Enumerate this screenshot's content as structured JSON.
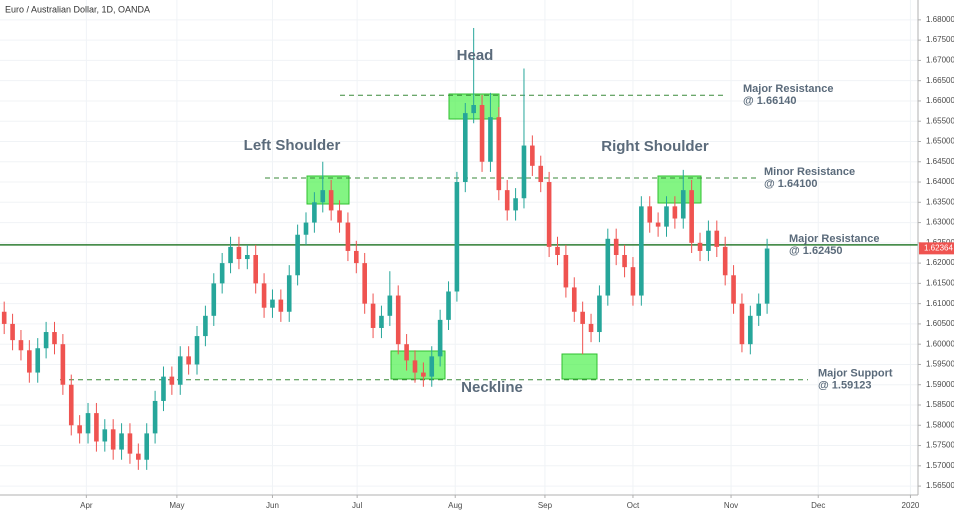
{
  "chart_data": {
    "type": "candlestick",
    "title": "Euro / Australian Dollar, 1D, OANDA",
    "up_color": "#26a69a",
    "down_color": "#ef5350",
    "grid": true,
    "ylim": [
      1.5628,
      1.6849
    ],
    "yticks": [
      {
        "value": 1.565,
        "label": "1.56500"
      },
      {
        "value": 1.57,
        "label": "1.57000"
      },
      {
        "value": 1.575,
        "label": "1.57500"
      },
      {
        "value": 1.58,
        "label": "1.58000"
      },
      {
        "value": 1.585,
        "label": "1.58500"
      },
      {
        "value": 1.59,
        "label": "1.59000"
      },
      {
        "value": 1.595,
        "label": "1.59500"
      },
      {
        "value": 1.6,
        "label": "1.60000"
      },
      {
        "value": 1.605,
        "label": "1.60500"
      },
      {
        "value": 1.61,
        "label": "1.61000"
      },
      {
        "value": 1.615,
        "label": "1.61500"
      },
      {
        "value": 1.62,
        "label": "1.62000"
      },
      {
        "value": 1.625,
        "label": "1.62500"
      },
      {
        "value": 1.63,
        "label": "1.63000"
      },
      {
        "value": 1.635,
        "label": "1.63500"
      },
      {
        "value": 1.64,
        "label": "1.64000"
      },
      {
        "value": 1.645,
        "label": "1.64500"
      },
      {
        "value": 1.65,
        "label": "1.65000"
      },
      {
        "value": 1.655,
        "label": "1.65500"
      },
      {
        "value": 1.66,
        "label": "1.66000"
      },
      {
        "value": 1.665,
        "label": "1.66500"
      },
      {
        "value": 1.67,
        "label": "1.67000"
      },
      {
        "value": 1.675,
        "label": "1.67500"
      },
      {
        "value": 1.68,
        "label": "1.68000"
      }
    ],
    "xlim": [
      -0.5,
      109
    ],
    "xticks": [
      {
        "value": 9.8,
        "label": "Apr"
      },
      {
        "value": 20.6,
        "label": "May"
      },
      {
        "value": 32,
        "label": "Jun"
      },
      {
        "value": 42.1,
        "label": "Jul"
      },
      {
        "value": 53.8,
        "label": "Aug"
      },
      {
        "value": 64.5,
        "label": "Sep"
      },
      {
        "value": 75,
        "label": "Oct"
      },
      {
        "value": 86.7,
        "label": "Nov"
      },
      {
        "value": 97.1,
        "label": "Dec"
      },
      {
        "value": 108.1,
        "label": "2020"
      }
    ],
    "candles": [
      [
        1.608,
        1.6105,
        1.6025,
        1.605
      ],
      [
        1.605,
        1.6075,
        1.5985,
        1.601
      ],
      [
        1.601,
        1.6035,
        1.596,
        1.5985
      ],
      [
        1.5985,
        1.601,
        1.5905,
        1.593
      ],
      [
        1.593,
        1.6015,
        1.5905,
        1.599
      ],
      [
        1.599,
        1.6055,
        1.5965,
        1.603
      ],
      [
        1.603,
        1.6055,
        1.5975,
        1.6
      ],
      [
        1.6,
        1.6025,
        1.5875,
        1.59
      ],
      [
        1.59,
        1.5925,
        1.5775,
        1.58
      ],
      [
        1.58,
        1.5825,
        1.5755,
        1.578
      ],
      [
        1.578,
        1.5855,
        1.5755,
        1.583
      ],
      [
        1.583,
        1.5855,
        1.5735,
        1.576
      ],
      [
        1.576,
        1.5815,
        1.5735,
        1.579
      ],
      [
        1.579,
        1.5815,
        1.5715,
        1.574
      ],
      [
        1.574,
        1.5805,
        1.5715,
        1.578
      ],
      [
        1.578,
        1.5805,
        1.5705,
        1.573
      ],
      [
        1.573,
        1.5755,
        1.569,
        1.5715
      ],
      [
        1.5715,
        1.5805,
        1.569,
        1.578
      ],
      [
        1.578,
        1.5885,
        1.5755,
        1.586
      ],
      [
        1.586,
        1.5945,
        1.5835,
        1.592
      ],
      [
        1.592,
        1.5945,
        1.5875,
        1.59
      ],
      [
        1.59,
        1.5995,
        1.5875,
        1.597
      ],
      [
        1.597,
        1.5995,
        1.5925,
        1.595
      ],
      [
        1.595,
        1.6045,
        1.5925,
        1.602
      ],
      [
        1.602,
        1.6095,
        1.5995,
        1.607
      ],
      [
        1.607,
        1.6175,
        1.6045,
        1.615
      ],
      [
        1.615,
        1.6225,
        1.6125,
        1.62
      ],
      [
        1.62,
        1.6265,
        1.6175,
        1.624
      ],
      [
        1.624,
        1.6265,
        1.6185,
        1.621
      ],
      [
        1.621,
        1.6245,
        1.6185,
        1.622
      ],
      [
        1.622,
        1.6245,
        1.6125,
        1.615
      ],
      [
        1.615,
        1.6175,
        1.6065,
        1.609
      ],
      [
        1.609,
        1.6135,
        1.6065,
        1.611
      ],
      [
        1.611,
        1.6135,
        1.6055,
        1.608
      ],
      [
        1.608,
        1.6195,
        1.6055,
        1.617
      ],
      [
        1.617,
        1.6295,
        1.6145,
        1.627
      ],
      [
        1.627,
        1.6325,
        1.6245,
        1.63
      ],
      [
        1.63,
        1.6375,
        1.6275,
        1.635
      ],
      [
        1.635,
        1.645,
        1.6325,
        1.638
      ],
      [
        1.638,
        1.6405,
        1.6305,
        1.633
      ],
      [
        1.633,
        1.6355,
        1.6275,
        1.63
      ],
      [
        1.63,
        1.6325,
        1.6205,
        1.623
      ],
      [
        1.623,
        1.6255,
        1.6175,
        1.62
      ],
      [
        1.62,
        1.6225,
        1.6075,
        1.61
      ],
      [
        1.61,
        1.6125,
        1.6015,
        1.604
      ],
      [
        1.604,
        1.6095,
        1.6015,
        1.607
      ],
      [
        1.607,
        1.618,
        1.6045,
        1.612
      ],
      [
        1.612,
        1.6145,
        1.5975,
        1.6
      ],
      [
        1.6,
        1.6025,
        1.5935,
        1.596
      ],
      [
        1.596,
        1.5985,
        1.5905,
        1.593
      ],
      [
        1.593,
        1.5955,
        1.5895,
        1.592
      ],
      [
        1.592,
        1.5995,
        1.5895,
        1.597
      ],
      [
        1.597,
        1.6085,
        1.5945,
        1.606
      ],
      [
        1.606,
        1.6155,
        1.6035,
        1.613
      ],
      [
        1.613,
        1.6425,
        1.6105,
        1.64
      ],
      [
        1.64,
        1.6595,
        1.6375,
        1.657
      ],
      [
        1.657,
        1.678,
        1.6545,
        1.659
      ],
      [
        1.659,
        1.6615,
        1.6425,
        1.645
      ],
      [
        1.645,
        1.662,
        1.6425,
        1.656
      ],
      [
        1.656,
        1.6585,
        1.6355,
        1.638
      ],
      [
        1.638,
        1.6405,
        1.6305,
        1.633
      ],
      [
        1.633,
        1.6385,
        1.6305,
        1.636
      ],
      [
        1.636,
        1.668,
        1.6335,
        1.649
      ],
      [
        1.649,
        1.6515,
        1.6415,
        1.644
      ],
      [
        1.644,
        1.6465,
        1.6375,
        1.64
      ],
      [
        1.64,
        1.6425,
        1.6215,
        1.624
      ],
      [
        1.624,
        1.6265,
        1.6195,
        1.622
      ],
      [
        1.622,
        1.6245,
        1.6115,
        1.614
      ],
      [
        1.614,
        1.6165,
        1.6055,
        1.608
      ],
      [
        1.608,
        1.6105,
        1.5975,
        1.605
      ],
      [
        1.605,
        1.6075,
        1.6005,
        1.603
      ],
      [
        1.603,
        1.6145,
        1.6005,
        1.612
      ],
      [
        1.612,
        1.6285,
        1.6095,
        1.626
      ],
      [
        1.626,
        1.6285,
        1.6195,
        1.622
      ],
      [
        1.622,
        1.6245,
        1.6165,
        1.619
      ],
      [
        1.619,
        1.6215,
        1.6095,
        1.612
      ],
      [
        1.612,
        1.6365,
        1.6095,
        1.634
      ],
      [
        1.634,
        1.6365,
        1.6275,
        1.63
      ],
      [
        1.63,
        1.6325,
        1.6265,
        1.629
      ],
      [
        1.629,
        1.6365,
        1.6265,
        1.634
      ],
      [
        1.634,
        1.6365,
        1.6285,
        1.631
      ],
      [
        1.631,
        1.643,
        1.6285,
        1.638
      ],
      [
        1.638,
        1.6405,
        1.6225,
        1.625
      ],
      [
        1.625,
        1.6275,
        1.6205,
        1.623
      ],
      [
        1.623,
        1.6305,
        1.6205,
        1.628
      ],
      [
        1.628,
        1.6305,
        1.6215,
        1.624
      ],
      [
        1.624,
        1.6265,
        1.6145,
        1.617
      ],
      [
        1.617,
        1.6195,
        1.6075,
        1.61
      ],
      [
        1.61,
        1.6125,
        1.598,
        1.6
      ],
      [
        1.6,
        1.6095,
        1.5975,
        1.607
      ],
      [
        1.607,
        1.6125,
        1.6045,
        1.61
      ],
      [
        1.61,
        1.626,
        1.6075,
        1.6236
      ]
    ],
    "last_price": 1.62364,
    "levels": [
      {
        "value": 1.6614,
        "label": "Major Resistance",
        "note": "@ 1.66140"
      },
      {
        "value": 1.641,
        "label": "Minor Resistance",
        "note": "@ 1.64100"
      },
      {
        "value": 1.6245,
        "label": "Major Resistance",
        "note": "@ 1.62450"
      },
      {
        "value": 1.59123,
        "label": "Major Support",
        "note": "@ 1.59123"
      }
    ],
    "annotations": [
      "Head",
      "Left Shoulder",
      "Right Shoulder",
      "Neckline"
    ]
  }
}
